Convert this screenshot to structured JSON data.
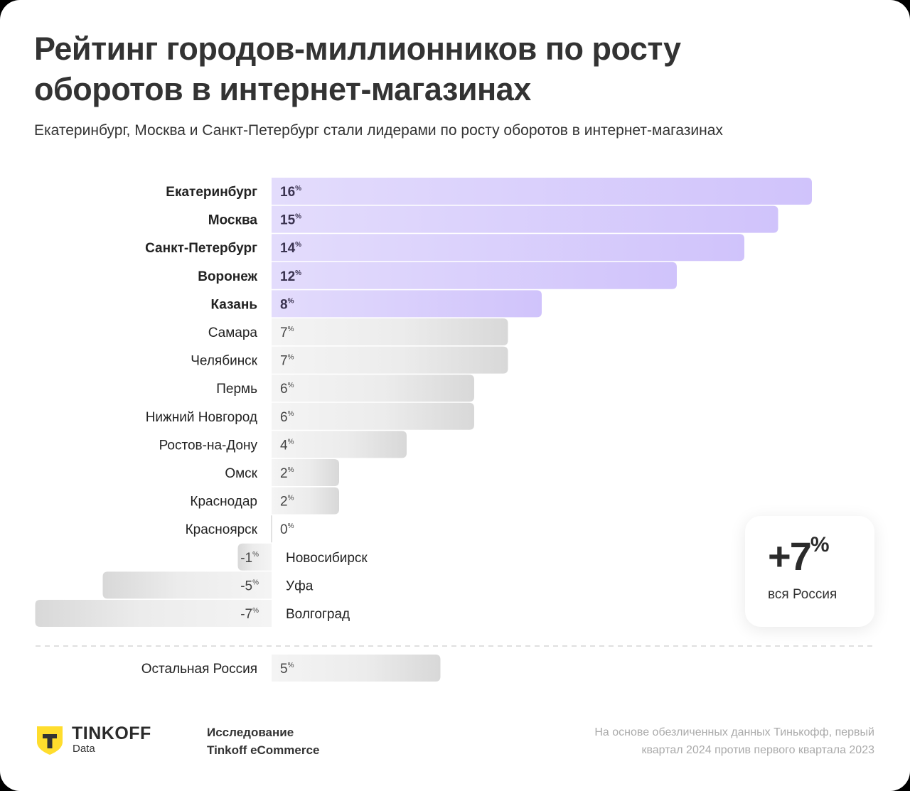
{
  "header": {
    "title": "Рейтинг городов-миллионников по росту оборотов в интернет-магазинах",
    "subtitle": "Екатеринбург, Москва и Санкт-Петербург стали лидерами по росту оборотов в интернет-магазинах"
  },
  "chart_data": {
    "type": "bar",
    "orientation": "horizontal",
    "title": "Рейтинг городов-миллионников по росту оборотов в интернет-магазинах",
    "xlabel": "",
    "ylabel": "",
    "unit": "%",
    "categories": [
      "Екатеринбург",
      "Москва",
      "Санкт-Петербург",
      "Воронеж",
      "Казань",
      "Самара",
      "Челябинск",
      "Пермь",
      "Нижний Новгород",
      "Ростов-на-Дону",
      "Омск",
      "Краснодар",
      "Красноярск",
      "Новосибирск",
      "Уфа",
      "Волгоград"
    ],
    "values": [
      16,
      15,
      14,
      12,
      8,
      7,
      7,
      6,
      6,
      4,
      2,
      2,
      0,
      -1,
      -5,
      -7
    ],
    "highlighted": [
      "Екатеринбург",
      "Москва",
      "Санкт-Петербург",
      "Воронеж",
      "Казань"
    ],
    "reference": {
      "category": "Остальная Россия",
      "value": 5
    },
    "total": {
      "value": 7,
      "label": "вся Россия"
    },
    "colors": {
      "highlight": "#d0c3fb",
      "highlight_light": "#e3dcfc",
      "normal": "#dcdcdc",
      "normal_light": "#f2f2f2"
    },
    "grid": false,
    "legend": "none"
  },
  "summary": {
    "value": "+7",
    "unit": "%",
    "label": "вся Россия"
  },
  "footer": {
    "brand": "TINKOFF",
    "brand_sub": "Data",
    "study_line1": "Исследование",
    "study_line2": "Tinkoff eCommerce",
    "source_line1": "На основе обезличенных данных Тинькофф, первый",
    "source_line2": "квартал 2024 против первого квартала 2023"
  }
}
